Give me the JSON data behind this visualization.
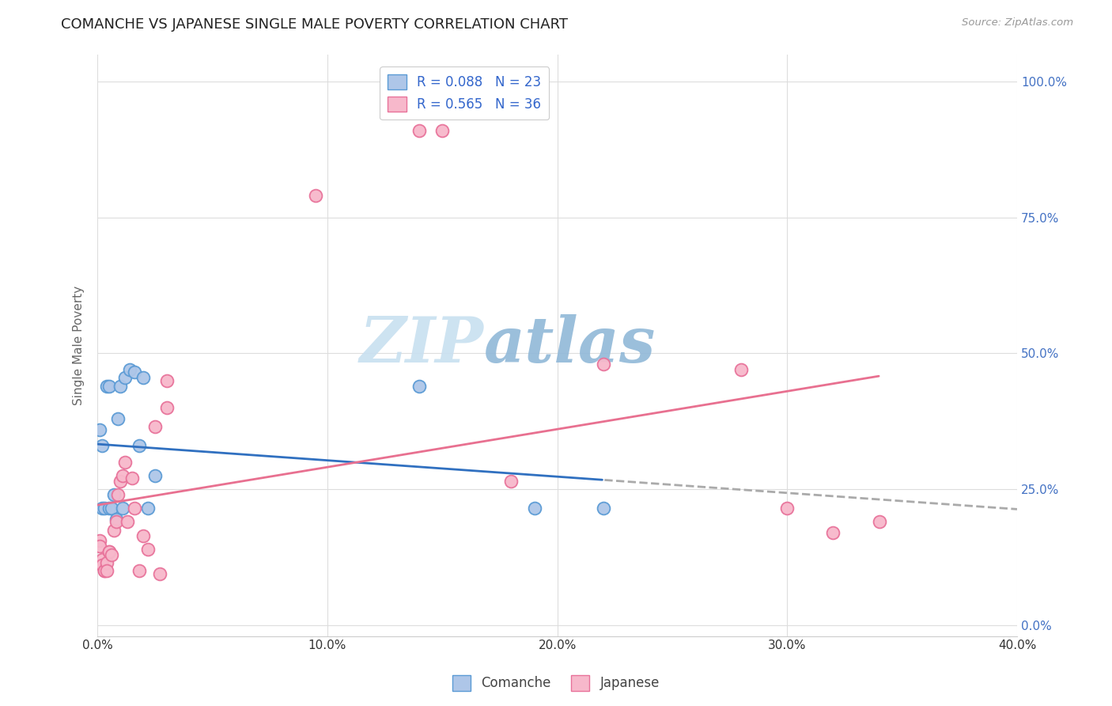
{
  "title": "COMANCHE VS JAPANESE SINGLE MALE POVERTY CORRELATION CHART",
  "source": "Source: ZipAtlas.com",
  "ylabel": "Single Male Poverty",
  "xlabel_ticks": [
    "0.0%",
    "10.0%",
    "20.0%",
    "30.0%",
    "40.0%"
  ],
  "right_ytick_labels": [
    "0.0%",
    "25.0%",
    "50.0%",
    "75.0%",
    "100.0%"
  ],
  "xlim": [
    0.0,
    0.4
  ],
  "ylim": [
    -0.02,
    1.05
  ],
  "watermark_part1": "ZIP",
  "watermark_part2": "atlas",
  "comanche_color": "#aec6e8",
  "japanese_color": "#f7b8cb",
  "comanche_edge": "#5b9bd5",
  "japanese_edge": "#e8729a",
  "trend_comanche_color": "#3070c0",
  "trend_comanche_dash_color": "#aaaaaa",
  "trend_japanese_color": "#e87090",
  "legend_R_comanche": "R = 0.088",
  "legend_N_comanche": "N = 23",
  "legend_R_japanese": "R = 0.565",
  "legend_N_japanese": "N = 36",
  "comanche_x": [
    0.001,
    0.002,
    0.002,
    0.003,
    0.004,
    0.005,
    0.005,
    0.006,
    0.007,
    0.008,
    0.009,
    0.01,
    0.011,
    0.012,
    0.014,
    0.016,
    0.018,
    0.02,
    0.022,
    0.025,
    0.14,
    0.19,
    0.22
  ],
  "comanche_y": [
    0.36,
    0.33,
    0.215,
    0.215,
    0.44,
    0.44,
    0.215,
    0.215,
    0.24,
    0.195,
    0.38,
    0.44,
    0.215,
    0.455,
    0.47,
    0.465,
    0.33,
    0.455,
    0.215,
    0.275,
    0.44,
    0.215,
    0.215
  ],
  "japanese_x": [
    0.001,
    0.001,
    0.002,
    0.002,
    0.003,
    0.003,
    0.004,
    0.004,
    0.005,
    0.005,
    0.006,
    0.007,
    0.008,
    0.009,
    0.01,
    0.011,
    0.012,
    0.013,
    0.015,
    0.016,
    0.018,
    0.02,
    0.022,
    0.025,
    0.027,
    0.03,
    0.03,
    0.095,
    0.14,
    0.15,
    0.18,
    0.22,
    0.28,
    0.3,
    0.32,
    0.34
  ],
  "japanese_y": [
    0.155,
    0.145,
    0.12,
    0.11,
    0.1,
    0.1,
    0.115,
    0.1,
    0.135,
    0.135,
    0.13,
    0.175,
    0.19,
    0.24,
    0.265,
    0.275,
    0.3,
    0.19,
    0.27,
    0.215,
    0.1,
    0.165,
    0.14,
    0.365,
    0.095,
    0.45,
    0.4,
    0.79,
    0.91,
    0.91,
    0.265,
    0.48,
    0.47,
    0.215,
    0.17,
    0.19
  ],
  "comanche_trend_xmax": 0.22,
  "japanese_trend_xmax": 0.34
}
